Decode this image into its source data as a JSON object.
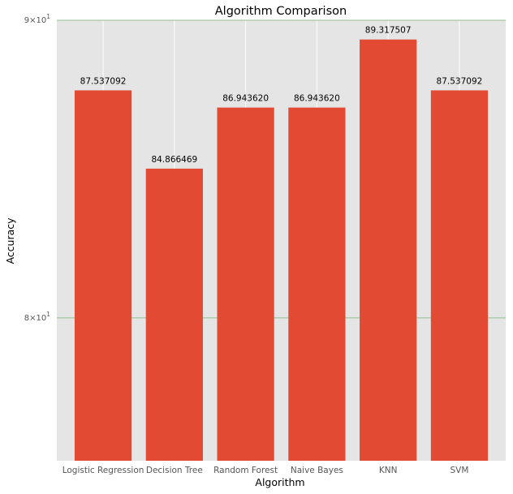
{
  "chart_data": {
    "type": "bar",
    "title": "Algorithm Comparison",
    "xlabel": "Algorithm",
    "ylabel": "Accuracy",
    "yscale": "log",
    "ylim": [
      75.6,
      90
    ],
    "grid": true,
    "categories": [
      "Logistic Regression",
      "Decision Tree",
      "Random Forest",
      "Naive Bayes",
      "KNN",
      "SVM"
    ],
    "values": [
      87.537092,
      84.866469,
      86.94362,
      86.94362,
      89.317507,
      87.537092
    ],
    "value_labels": [
      "87.537092",
      "84.866469",
      "86.943620",
      "86.943620",
      "89.317507",
      "87.537092"
    ],
    "ytick_labels": [
      {
        "value": 90,
        "mantissa": "9",
        "exponent": "1"
      },
      {
        "value": 80,
        "mantissa": "8",
        "exponent": "1"
      }
    ],
    "colors": {
      "bar": "#e24a33",
      "plot_bg": "#e5e5e5",
      "x_grid": "#ffffff",
      "y_grid": "#8fbf8f"
    }
  }
}
